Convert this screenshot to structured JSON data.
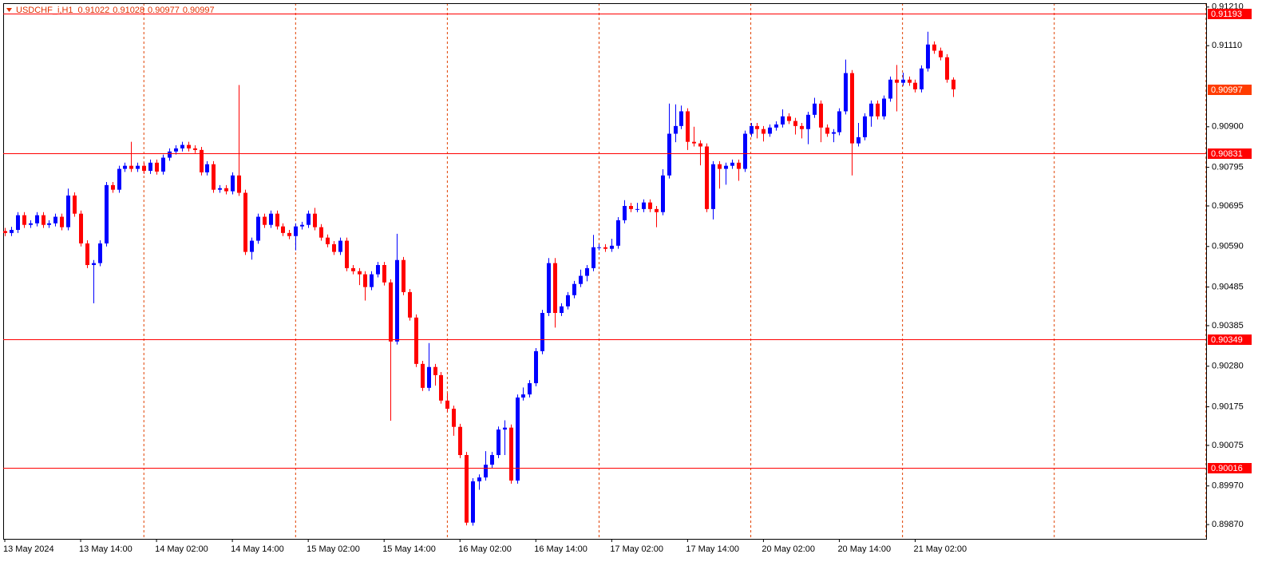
{
  "chart_data": {
    "type": "candlestick",
    "title": "USDCHF_i,H1",
    "up_color": "#0000ff",
    "down_color": "#ff0000",
    "level_color": "#ff0000",
    "separator_color": "#e04000",
    "categories": [
      "13 May 2024",
      null,
      null,
      null,
      null,
      null,
      null,
      null,
      null,
      null,
      null,
      null,
      "13 May 14:00",
      null,
      null,
      null,
      null,
      null,
      null,
      null,
      null,
      null,
      null,
      null,
      "14 May 02:00",
      null,
      null,
      null,
      null,
      null,
      null,
      null,
      null,
      null,
      null,
      null,
      "14 May 14:00",
      null,
      null,
      null,
      null,
      null,
      null,
      null,
      null,
      null,
      null,
      null,
      "15 May 02:00",
      null,
      null,
      null,
      null,
      null,
      null,
      null,
      null,
      null,
      null,
      null,
      "15 May 14:00",
      null,
      null,
      null,
      null,
      null,
      null,
      null,
      null,
      null,
      null,
      null,
      "16 May 02:00",
      null,
      null,
      null,
      null,
      null,
      null,
      null,
      null,
      null,
      null,
      null,
      "16 May 14:00",
      null,
      null,
      null,
      null,
      null,
      null,
      null,
      null,
      null,
      null,
      null,
      "17 May 02:00",
      null,
      null,
      null,
      null,
      null,
      null,
      null,
      null,
      null,
      null,
      null,
      "17 May 14:00",
      null,
      null,
      null,
      null,
      null,
      null,
      null,
      null,
      null,
      null,
      null,
      "20 May 02:00",
      null,
      null,
      null,
      null,
      null,
      null,
      null,
      null,
      null,
      null,
      null,
      "20 May 14:00",
      null,
      null,
      null,
      null,
      null,
      null,
      null,
      null,
      null,
      null,
      null,
      "21 May 02:00",
      null,
      null,
      null,
      null,
      null,
      null
    ],
    "open": [
      0.9063,
      0.90625,
      0.90633,
      0.90671,
      0.90646,
      0.9065,
      0.90671,
      0.90646,
      0.9065,
      0.90667,
      0.9064,
      0.90722,
      0.90675,
      0.90598,
      0.90542,
      0.90547,
      0.90598,
      0.90749,
      0.90737,
      0.90791,
      0.90799,
      0.90791,
      0.90799,
      0.90786,
      0.90807,
      0.90784,
      0.9082,
      0.90836,
      0.90844,
      0.90853,
      0.90844,
      0.9084,
      0.90782,
      0.90803,
      0.90737,
      0.90741,
      0.90733,
      0.90774,
      0.90729,
      0.90576,
      0.90605,
      0.90667,
      0.90646,
      0.90675,
      0.90642,
      0.90625,
      0.90617,
      0.90642,
      0.90646,
      0.90675,
      0.9064,
      0.90613,
      0.90596,
      0.90576,
      0.90605,
      0.90534,
      0.90526,
      0.90518,
      0.90485,
      0.90518,
      0.90542,
      0.90497,
      0.90344,
      0.90555,
      0.90472,
      0.90406,
      0.90286,
      0.90224,
      0.90278,
      0.90257,
      0.90191,
      0.9017,
      0.90123,
      0.9005,
      0.89875,
      0.89982,
      0.89992,
      0.90025,
      0.9005,
      0.90116,
      0.90121,
      0.89984,
      0.90199,
      0.90207,
      0.90236,
      0.90319,
      0.90418,
      0.90547,
      0.90418,
      0.90435,
      0.90464,
      0.90493,
      0.90514,
      0.90534,
      0.90588,
      0.90588,
      0.90584,
      0.90592,
      0.90658,
      0.90695,
      0.90687,
      0.90687,
      0.90704,
      0.90687,
      0.90679,
      0.90774,
      0.90882,
      0.90902,
      0.9094,
      0.90861,
      0.90857,
      0.90849,
      0.90687,
      0.90803,
      0.90791,
      0.90799,
      0.90807,
      0.90791,
      0.90882,
      0.90902,
      0.90894,
      0.90882,
      0.90898,
      0.90906,
      0.90927,
      0.90915,
      0.90902,
      0.90894,
      0.90931,
      0.9096,
      0.90898,
      0.90882,
      0.90886,
      0.9094,
      0.91039,
      0.90857,
      0.90873,
      0.90927,
      0.9096,
      0.90927,
      0.90973,
      0.91022,
      0.91014,
      0.91022,
      0.91014,
      0.90997,
      0.91051,
      0.91113,
      0.91097,
      0.9108,
      0.91022
    ],
    "high": [
      0.90638,
      0.90641,
      0.90679,
      0.90679,
      0.90658,
      0.90679,
      0.90679,
      0.90658,
      0.90675,
      0.90675,
      0.9074,
      0.9073,
      0.90683,
      0.90606,
      0.90555,
      0.90606,
      0.90757,
      0.90757,
      0.90799,
      0.90807,
      0.90861,
      0.90807,
      0.90807,
      0.90815,
      0.90815,
      0.90828,
      0.90844,
      0.90852,
      0.90861,
      0.90861,
      0.90852,
      0.90848,
      0.90811,
      0.90811,
      0.90749,
      0.90749,
      0.90782,
      0.91008,
      0.90737,
      0.90613,
      0.90675,
      0.90675,
      0.90683,
      0.90683,
      0.9065,
      0.90633,
      0.9065,
      0.90654,
      0.90683,
      0.9069,
      0.90648,
      0.90621,
      0.90604,
      0.90613,
      0.90613,
      0.90542,
      0.90534,
      0.90526,
      0.90526,
      0.9055,
      0.9055,
      0.90505,
      0.90623,
      0.90563,
      0.9048,
      0.90414,
      0.90294,
      0.9034,
      0.90286,
      0.90265,
      0.9021,
      0.90178,
      0.90131,
      0.90058,
      0.8999,
      0.9,
      0.9006,
      0.90058,
      0.90124,
      0.9014,
      0.90129,
      0.90207,
      0.90225,
      0.90244,
      0.90327,
      0.90426,
      0.9056,
      0.9056,
      0.90443,
      0.90472,
      0.90501,
      0.9053,
      0.90542,
      0.9062,
      0.90596,
      0.90596,
      0.9061,
      0.90666,
      0.9071,
      0.90703,
      0.90703,
      0.90712,
      0.90712,
      0.90695,
      0.9079,
      0.9096,
      0.90958,
      0.90955,
      0.90948,
      0.909,
      0.90865,
      0.90857,
      0.90811,
      0.90811,
      0.90807,
      0.90815,
      0.90815,
      0.9089,
      0.9091,
      0.9091,
      0.90902,
      0.90906,
      0.90914,
      0.90945,
      0.90935,
      0.90923,
      0.9091,
      0.90939,
      0.90975,
      0.90968,
      0.90906,
      0.90894,
      0.90948,
      0.91074,
      0.91047,
      0.9091,
      0.90935,
      0.90968,
      0.90968,
      0.90981,
      0.9103,
      0.9106,
      0.9104,
      0.9103,
      0.91022,
      0.91059,
      0.91146,
      0.91121,
      0.91105,
      0.91088,
      0.91028
    ],
    "low": [
      0.90617,
      0.90617,
      0.90625,
      0.90638,
      0.90638,
      0.90642,
      0.90638,
      0.90638,
      0.90642,
      0.90632,
      0.90632,
      0.90667,
      0.9059,
      0.90534,
      0.90443,
      0.90539,
      0.9059,
      0.90729,
      0.90729,
      0.90783,
      0.90783,
      0.90783,
      0.90778,
      0.90778,
      0.90776,
      0.90776,
      0.90812,
      0.90828,
      0.90836,
      0.90836,
      0.90832,
      0.90774,
      0.90774,
      0.90729,
      0.90729,
      0.90725,
      0.90725,
      0.90721,
      0.90568,
      0.90556,
      0.90597,
      0.90638,
      0.90638,
      0.90634,
      0.90617,
      0.90609,
      0.9058,
      0.90634,
      0.90638,
      0.90632,
      0.90605,
      0.90588,
      0.90568,
      0.90568,
      0.90526,
      0.90518,
      0.9049,
      0.9045,
      0.90477,
      0.9051,
      0.90489,
      0.90139,
      0.90336,
      0.90464,
      0.90398,
      0.90278,
      0.90216,
      0.90216,
      0.9023,
      0.90183,
      0.90162,
      0.901,
      0.90042,
      0.89868,
      0.89867,
      0.8996,
      0.89984,
      0.90017,
      0.90042,
      0.9005,
      0.89976,
      0.89976,
      0.90191,
      0.90199,
      0.90228,
      0.90311,
      0.9041,
      0.9038,
      0.9041,
      0.90427,
      0.90456,
      0.90485,
      0.905,
      0.90526,
      0.9058,
      0.90576,
      0.90576,
      0.90584,
      0.9065,
      0.90679,
      0.90679,
      0.90679,
      0.90679,
      0.9064,
      0.90671,
      0.90766,
      0.9086,
      0.90894,
      0.9084,
      0.90849,
      0.908,
      0.90679,
      0.9066,
      0.9074,
      0.9075,
      0.90791,
      0.9076,
      0.90783,
      0.90874,
      0.9087,
      0.90862,
      0.90874,
      0.9089,
      0.90898,
      0.90907,
      0.9088,
      0.9087,
      0.90855,
      0.90923,
      0.9086,
      0.90874,
      0.9086,
      0.90878,
      0.90932,
      0.90774,
      0.90849,
      0.90865,
      0.909,
      0.90919,
      0.90919,
      0.90965,
      0.9094,
      0.91006,
      0.91006,
      0.90989,
      0.90989,
      0.91043,
      0.91089,
      0.91072,
      0.91014,
      0.90977
    ],
    "close": [
      0.90625,
      0.90633,
      0.90671,
      0.90646,
      0.9065,
      0.90671,
      0.90646,
      0.9065,
      0.90667,
      0.9064,
      0.90722,
      0.90675,
      0.90598,
      0.90542,
      0.90547,
      0.90598,
      0.90749,
      0.90737,
      0.90791,
      0.90799,
      0.90791,
      0.90799,
      0.90786,
      0.90807,
      0.90784,
      0.9082,
      0.90836,
      0.90844,
      0.90853,
      0.90844,
      0.9084,
      0.90782,
      0.90803,
      0.90737,
      0.90741,
      0.90733,
      0.90774,
      0.90729,
      0.90576,
      0.90605,
      0.90667,
      0.90646,
      0.90675,
      0.90642,
      0.90625,
      0.90617,
      0.90642,
      0.90646,
      0.90675,
      0.9064,
      0.90613,
      0.90596,
      0.90576,
      0.90605,
      0.90534,
      0.90526,
      0.90518,
      0.90485,
      0.90518,
      0.90542,
      0.90497,
      0.90344,
      0.90555,
      0.90472,
      0.90406,
      0.90286,
      0.90224,
      0.90278,
      0.90257,
      0.90191,
      0.9017,
      0.90123,
      0.9005,
      0.89875,
      0.89982,
      0.89992,
      0.90025,
      0.9005,
      0.90116,
      0.90121,
      0.89984,
      0.90199,
      0.90207,
      0.90236,
      0.90319,
      0.90418,
      0.90547,
      0.90418,
      0.90435,
      0.90464,
      0.90493,
      0.90514,
      0.90534,
      0.90588,
      0.90588,
      0.90584,
      0.90592,
      0.90658,
      0.90695,
      0.90687,
      0.90687,
      0.90704,
      0.90687,
      0.90679,
      0.90774,
      0.90882,
      0.90902,
      0.9094,
      0.90861,
      0.90857,
      0.90849,
      0.90687,
      0.90803,
      0.90791,
      0.90799,
      0.90807,
      0.90791,
      0.90882,
      0.90902,
      0.90894,
      0.90882,
      0.90898,
      0.90906,
      0.90927,
      0.90915,
      0.90902,
      0.90894,
      0.90931,
      0.9096,
      0.90898,
      0.90882,
      0.90886,
      0.9094,
      0.91039,
      0.90857,
      0.90873,
      0.90927,
      0.9096,
      0.90927,
      0.90973,
      0.91022,
      0.91014,
      0.91022,
      0.91014,
      0.90997,
      0.91051,
      0.91113,
      0.91097,
      0.9108,
      0.91022,
      0.90997
    ],
    "ylim": [
      0.89833,
      0.9122
    ],
    "yticks": [
      {
        "value": 0.9121,
        "label": "0.91210"
      },
      {
        "value": 0.9111,
        "label": "0.91110"
      },
      {
        "value": 0.909,
        "label": "0.90900"
      },
      0.90795,
      0.90695,
      {
        "value": 0.9059,
        "label": "0.90590"
      },
      0.90485,
      0.90385,
      {
        "value": 0.9028,
        "label": "0.90280"
      },
      0.90175,
      0.90075,
      {
        "value": 0.8997,
        "label": "0.89970"
      },
      {
        "value": 0.8987,
        "label": "0.89870"
      }
    ],
    "levels": [
      0.91193,
      0.90831,
      0.90349,
      0.90016
    ]
  }
}
